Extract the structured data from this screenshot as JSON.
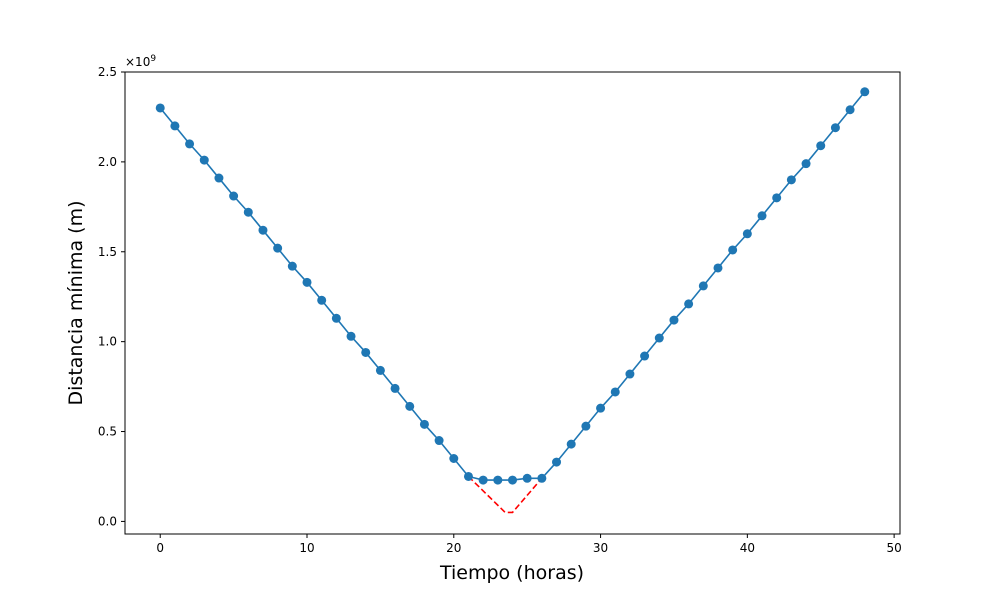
{
  "chart_data": {
    "type": "line",
    "title": "",
    "xlabel": "Tiempo (horas)",
    "ylabel": "Distancia mínima (m)",
    "y_offset_label": "×10",
    "y_offset_exponent": "9",
    "xlim": [
      -2.4,
      50.4
    ],
    "ylim": [
      -0.07,
      2.5
    ],
    "y_scale_factor": 1000000000,
    "grid": false,
    "legend": "none",
    "x_ticks": [
      0,
      10,
      20,
      30,
      40,
      50
    ],
    "x_tick_labels": [
      "0",
      "10",
      "20",
      "30",
      "40",
      "50"
    ],
    "y_ticks": [
      0.0,
      0.5,
      1.0,
      1.5,
      2.0,
      2.5
    ],
    "y_tick_labels": [
      "0.0",
      "0.5",
      "1.0",
      "1.5",
      "2.0",
      "2.5"
    ],
    "series": [
      {
        "style": "solid-with-markers",
        "color": "#1f77b4",
        "x": [
          0,
          1,
          2,
          3,
          4,
          5,
          6,
          7,
          8,
          9,
          10,
          11,
          12,
          13,
          14,
          15,
          16,
          17,
          18,
          19,
          20,
          21,
          22,
          23,
          24,
          25,
          26,
          27,
          28,
          29,
          30,
          31,
          32,
          33,
          34,
          35,
          36,
          37,
          38,
          39,
          40,
          41,
          42,
          43,
          44,
          45,
          46,
          47,
          48
        ],
        "y": [
          2.3,
          2.2,
          2.1,
          2.01,
          1.91,
          1.81,
          1.72,
          1.62,
          1.52,
          1.42,
          1.33,
          1.23,
          1.13,
          1.03,
          0.94,
          0.84,
          0.74,
          0.64,
          0.54,
          0.45,
          0.35,
          0.25,
          0.23,
          0.23,
          0.23,
          0.24,
          0.24,
          0.33,
          0.43,
          0.53,
          0.63,
          0.72,
          0.82,
          0.92,
          1.02,
          1.12,
          1.21,
          1.31,
          1.41,
          1.51,
          1.6,
          1.7,
          1.8,
          1.9,
          1.99,
          2.09,
          2.19,
          2.29,
          2.39
        ]
      },
      {
        "style": "dashed",
        "color": "#ff0000",
        "x": [
          21,
          23.5,
          24,
          26
        ],
        "y": [
          0.25,
          0.05,
          0.05,
          0.24
        ]
      }
    ]
  }
}
